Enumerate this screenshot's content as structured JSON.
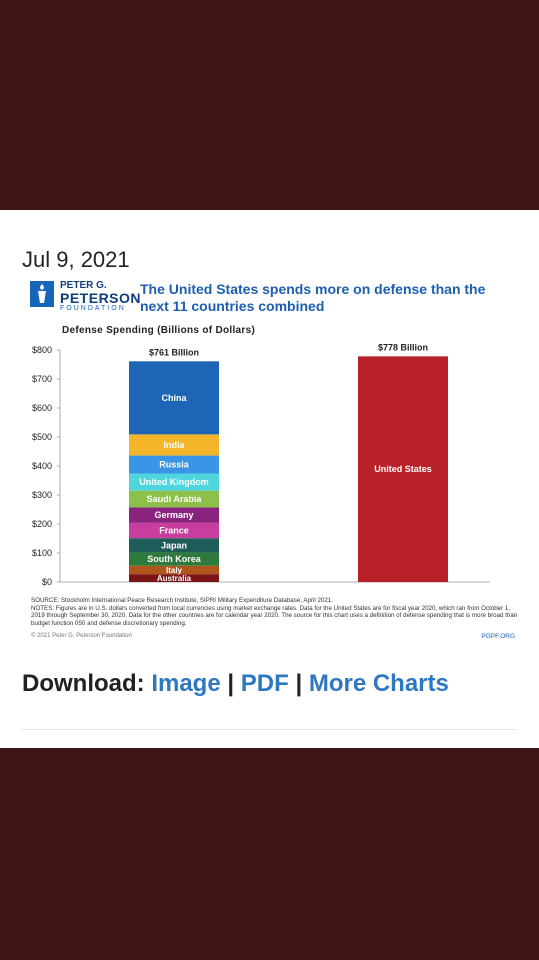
{
  "date": "Jul 9, 2021",
  "logo": {
    "line1": "PETER G.",
    "line2": "PETERSON",
    "line3": "FOUNDATION"
  },
  "headline": "The United States spends more on defense than the next 11 countries combined",
  "footer": {
    "source": "SOURCE: Stockholm International Peace Research Institute, SIPRI Military Expenditure Database, April 2021.",
    "notes": "NOTES: Figures are in U.S. dollars converted from local currencies using market exchange rates. Data for the United States are for fiscal year 2020, which ran from October 1, 2019 through September 30, 2020. Data for the other countries are for calendar year 2020. The source for this chart uses a definition of defense spending that is more broad than budget function 050 and defense discretionary spending.",
    "copyright": "© 2021 Peter G. Peterson Foundation",
    "site": "PGPF.ORG"
  },
  "download": {
    "prefix": "Download:",
    "image": "Image",
    "pdf": "PDF",
    "more": "More Charts",
    "sep": "|"
  },
  "colors": {
    "background": "#3f1416",
    "us": "#b8202a",
    "headline": "#1c5fb0"
  },
  "chart_data": {
    "type": "bar",
    "stacked": true,
    "title": "Defense Spending (Billions of Dollars)",
    "ylim": [
      0,
      800
    ],
    "yticks": [
      0,
      100,
      200,
      300,
      400,
      500,
      600,
      700,
      800
    ],
    "ytick_labels": [
      "$0",
      "$100",
      "$200",
      "$300",
      "$400",
      "$500",
      "$600",
      "$700",
      "$800"
    ],
    "grid": false,
    "bars": [
      {
        "total_label": "$761 Billion",
        "segments": [
          {
            "name": "Australia",
            "value": 27,
            "color": "#7b1416"
          },
          {
            "name": "Italy",
            "value": 29,
            "color": "#b0561c"
          },
          {
            "name": "South Korea",
            "value": 46,
            "color": "#2e7a3c"
          },
          {
            "name": "Japan",
            "value": 49,
            "color": "#1e5c5a"
          },
          {
            "name": "France",
            "value": 53,
            "color": "#c83e9f"
          },
          {
            "name": "Germany",
            "value": 53,
            "color": "#8a237e"
          },
          {
            "name": "Saudi Arabia",
            "value": 58,
            "color": "#8cc04a"
          },
          {
            "name": "United Kingdom",
            "value": 59,
            "color": "#4fd5dc"
          },
          {
            "name": "Russia",
            "value": 62,
            "color": "#3a95e6"
          },
          {
            "name": "India",
            "value": 73,
            "color": "#f5b52a"
          },
          {
            "name": "China",
            "value": 252,
            "color": "#1e66b5"
          }
        ]
      },
      {
        "total_label": "$778 Billion",
        "segments": [
          {
            "name": "United States",
            "value": 778,
            "color": "#b8202a"
          }
        ]
      }
    ]
  }
}
